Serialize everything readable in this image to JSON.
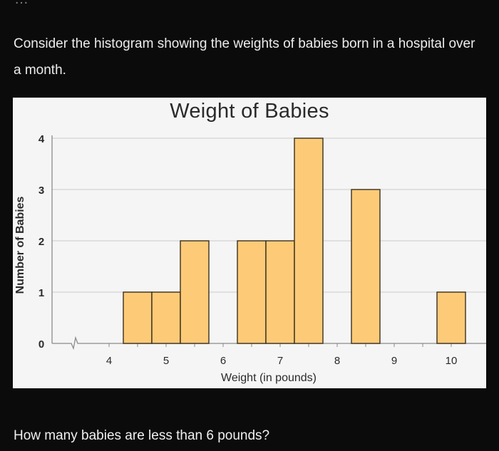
{
  "page": {
    "cutoff_text": "…",
    "prompt": "Consider the histogram showing the weights of babies born in a hospital over a month.",
    "question": "How many babies are less than 6 pounds?"
  },
  "colors": {
    "background": "#0b0b0b",
    "panel": "#f5f5f5",
    "bar_fill": "#fdcb78",
    "bar_stroke": "#3b2f1c",
    "grid": "#d3d3d3",
    "axis": "#8a8a8a"
  },
  "chart_data": {
    "type": "bar",
    "title": "Weight of Babies",
    "xlabel": "Weight (in pounds)",
    "ylabel": "Number of Babies",
    "x_ticks": [
      4,
      5,
      6,
      7,
      8,
      9,
      10
    ],
    "y_ticks": [
      0,
      1,
      2,
      3,
      4
    ],
    "ylim": [
      0,
      4
    ],
    "xlim": [
      3,
      10.6
    ],
    "axis_break": true,
    "grid": "horizontal",
    "bin_width": 0.5,
    "bins": [
      {
        "start": 4.25,
        "end": 4.75,
        "count": 1
      },
      {
        "start": 4.75,
        "end": 5.25,
        "count": 1
      },
      {
        "start": 5.25,
        "end": 5.75,
        "count": 2
      },
      {
        "start": 6.25,
        "end": 6.75,
        "count": 2
      },
      {
        "start": 6.75,
        "end": 7.25,
        "count": 2
      },
      {
        "start": 7.25,
        "end": 7.75,
        "count": 4
      },
      {
        "start": 8.25,
        "end": 8.75,
        "count": 3
      },
      {
        "start": 9.75,
        "end": 10.25,
        "count": 1
      }
    ],
    "categories": [
      "4.5",
      "5",
      "5.5",
      "6.5",
      "7",
      "7.5",
      "8.5",
      "10"
    ],
    "values": [
      1,
      1,
      2,
      2,
      2,
      4,
      3,
      1
    ]
  }
}
